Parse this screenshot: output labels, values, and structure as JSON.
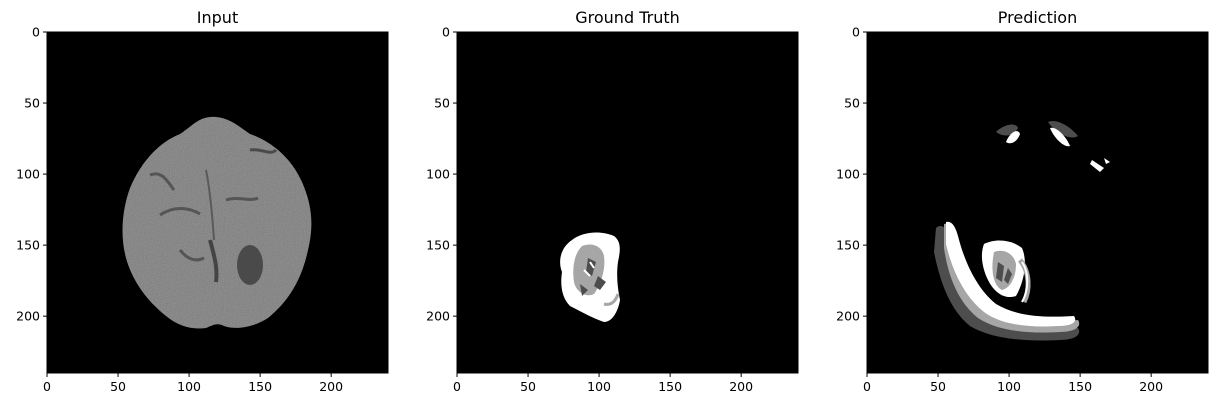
{
  "figure": {
    "panels": [
      {
        "id": "input",
        "title": "Input",
        "image": "brain-mri-axial-slice",
        "x_ticks": [
          "0",
          "50",
          "100",
          "150",
          "200"
        ],
        "y_ticks": [
          "0",
          "50",
          "100",
          "150",
          "200"
        ]
      },
      {
        "id": "ground_truth",
        "title": "Ground Truth",
        "image": "tumor-segmentation-mask",
        "x_ticks": [
          "0",
          "50",
          "100",
          "150",
          "200"
        ],
        "y_ticks": [
          "0",
          "50",
          "100",
          "150",
          "200"
        ]
      },
      {
        "id": "prediction",
        "title": "Prediction",
        "image": "predicted-segmentation-mask",
        "x_ticks": [
          "0",
          "50",
          "100",
          "150",
          "200"
        ],
        "y_ticks": [
          "0",
          "50",
          "100",
          "150",
          "200"
        ]
      }
    ],
    "axis_range": [
      0,
      240
    ],
    "tick_values": [
      0,
      50,
      100,
      150,
      200
    ],
    "colors": {
      "background": "#ffffff",
      "image_background": "#000000",
      "brain_tissue": "#7a7a7a",
      "mask_white": "#ffffff",
      "mask_light_gray": "#a6a6a6",
      "mask_dark_gray": "#4d4d4d"
    }
  }
}
